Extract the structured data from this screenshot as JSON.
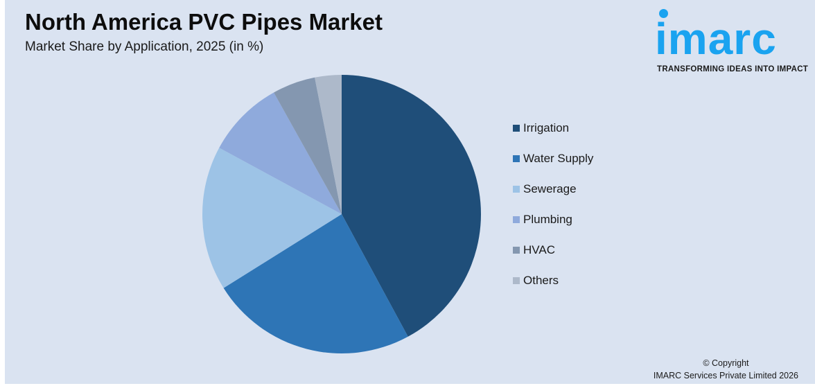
{
  "header": {
    "title": "North America PVC Pipes Market",
    "subtitle": "Market Share by Application, 2025 (in %)"
  },
  "logo": {
    "word": "imarc",
    "tagline": "TRANSFORMING IDEAS INTO IMPACT",
    "color": "#1aa3f0"
  },
  "footer": {
    "line1": "© Copyright",
    "line2": "IMARC Services Private Limited 2026"
  },
  "chart_data": {
    "type": "pie",
    "title": "North America PVC Pipes Market",
    "subtitle": "Market Share by Application, 2025 (in %)",
    "categories": [
      "Irrigation",
      "Water Supply",
      "Sewerage",
      "Plumbing",
      "HVAC",
      "Others"
    ],
    "values": [
      42.1,
      24.0,
      16.8,
      9.0,
      5.0,
      3.1
    ],
    "colors": [
      "#1f4e79",
      "#2e75b6",
      "#9dc3e6",
      "#8faadc",
      "#8497b0",
      "#adb9ca"
    ],
    "start_angle": "12 o'clock, clockwise",
    "legend_position": "right",
    "data_labels": false
  },
  "legend": {
    "items": [
      {
        "label": "Irrigation",
        "color": "#1f4e79"
      },
      {
        "label": "Water Supply",
        "color": "#2e75b6"
      },
      {
        "label": "Sewerage",
        "color": "#9dc3e6"
      },
      {
        "label": "Plumbing",
        "color": "#8faadc"
      },
      {
        "label": "HVAC",
        "color": "#8497b0"
      },
      {
        "label": "Others",
        "color": "#adb9ca"
      }
    ]
  }
}
